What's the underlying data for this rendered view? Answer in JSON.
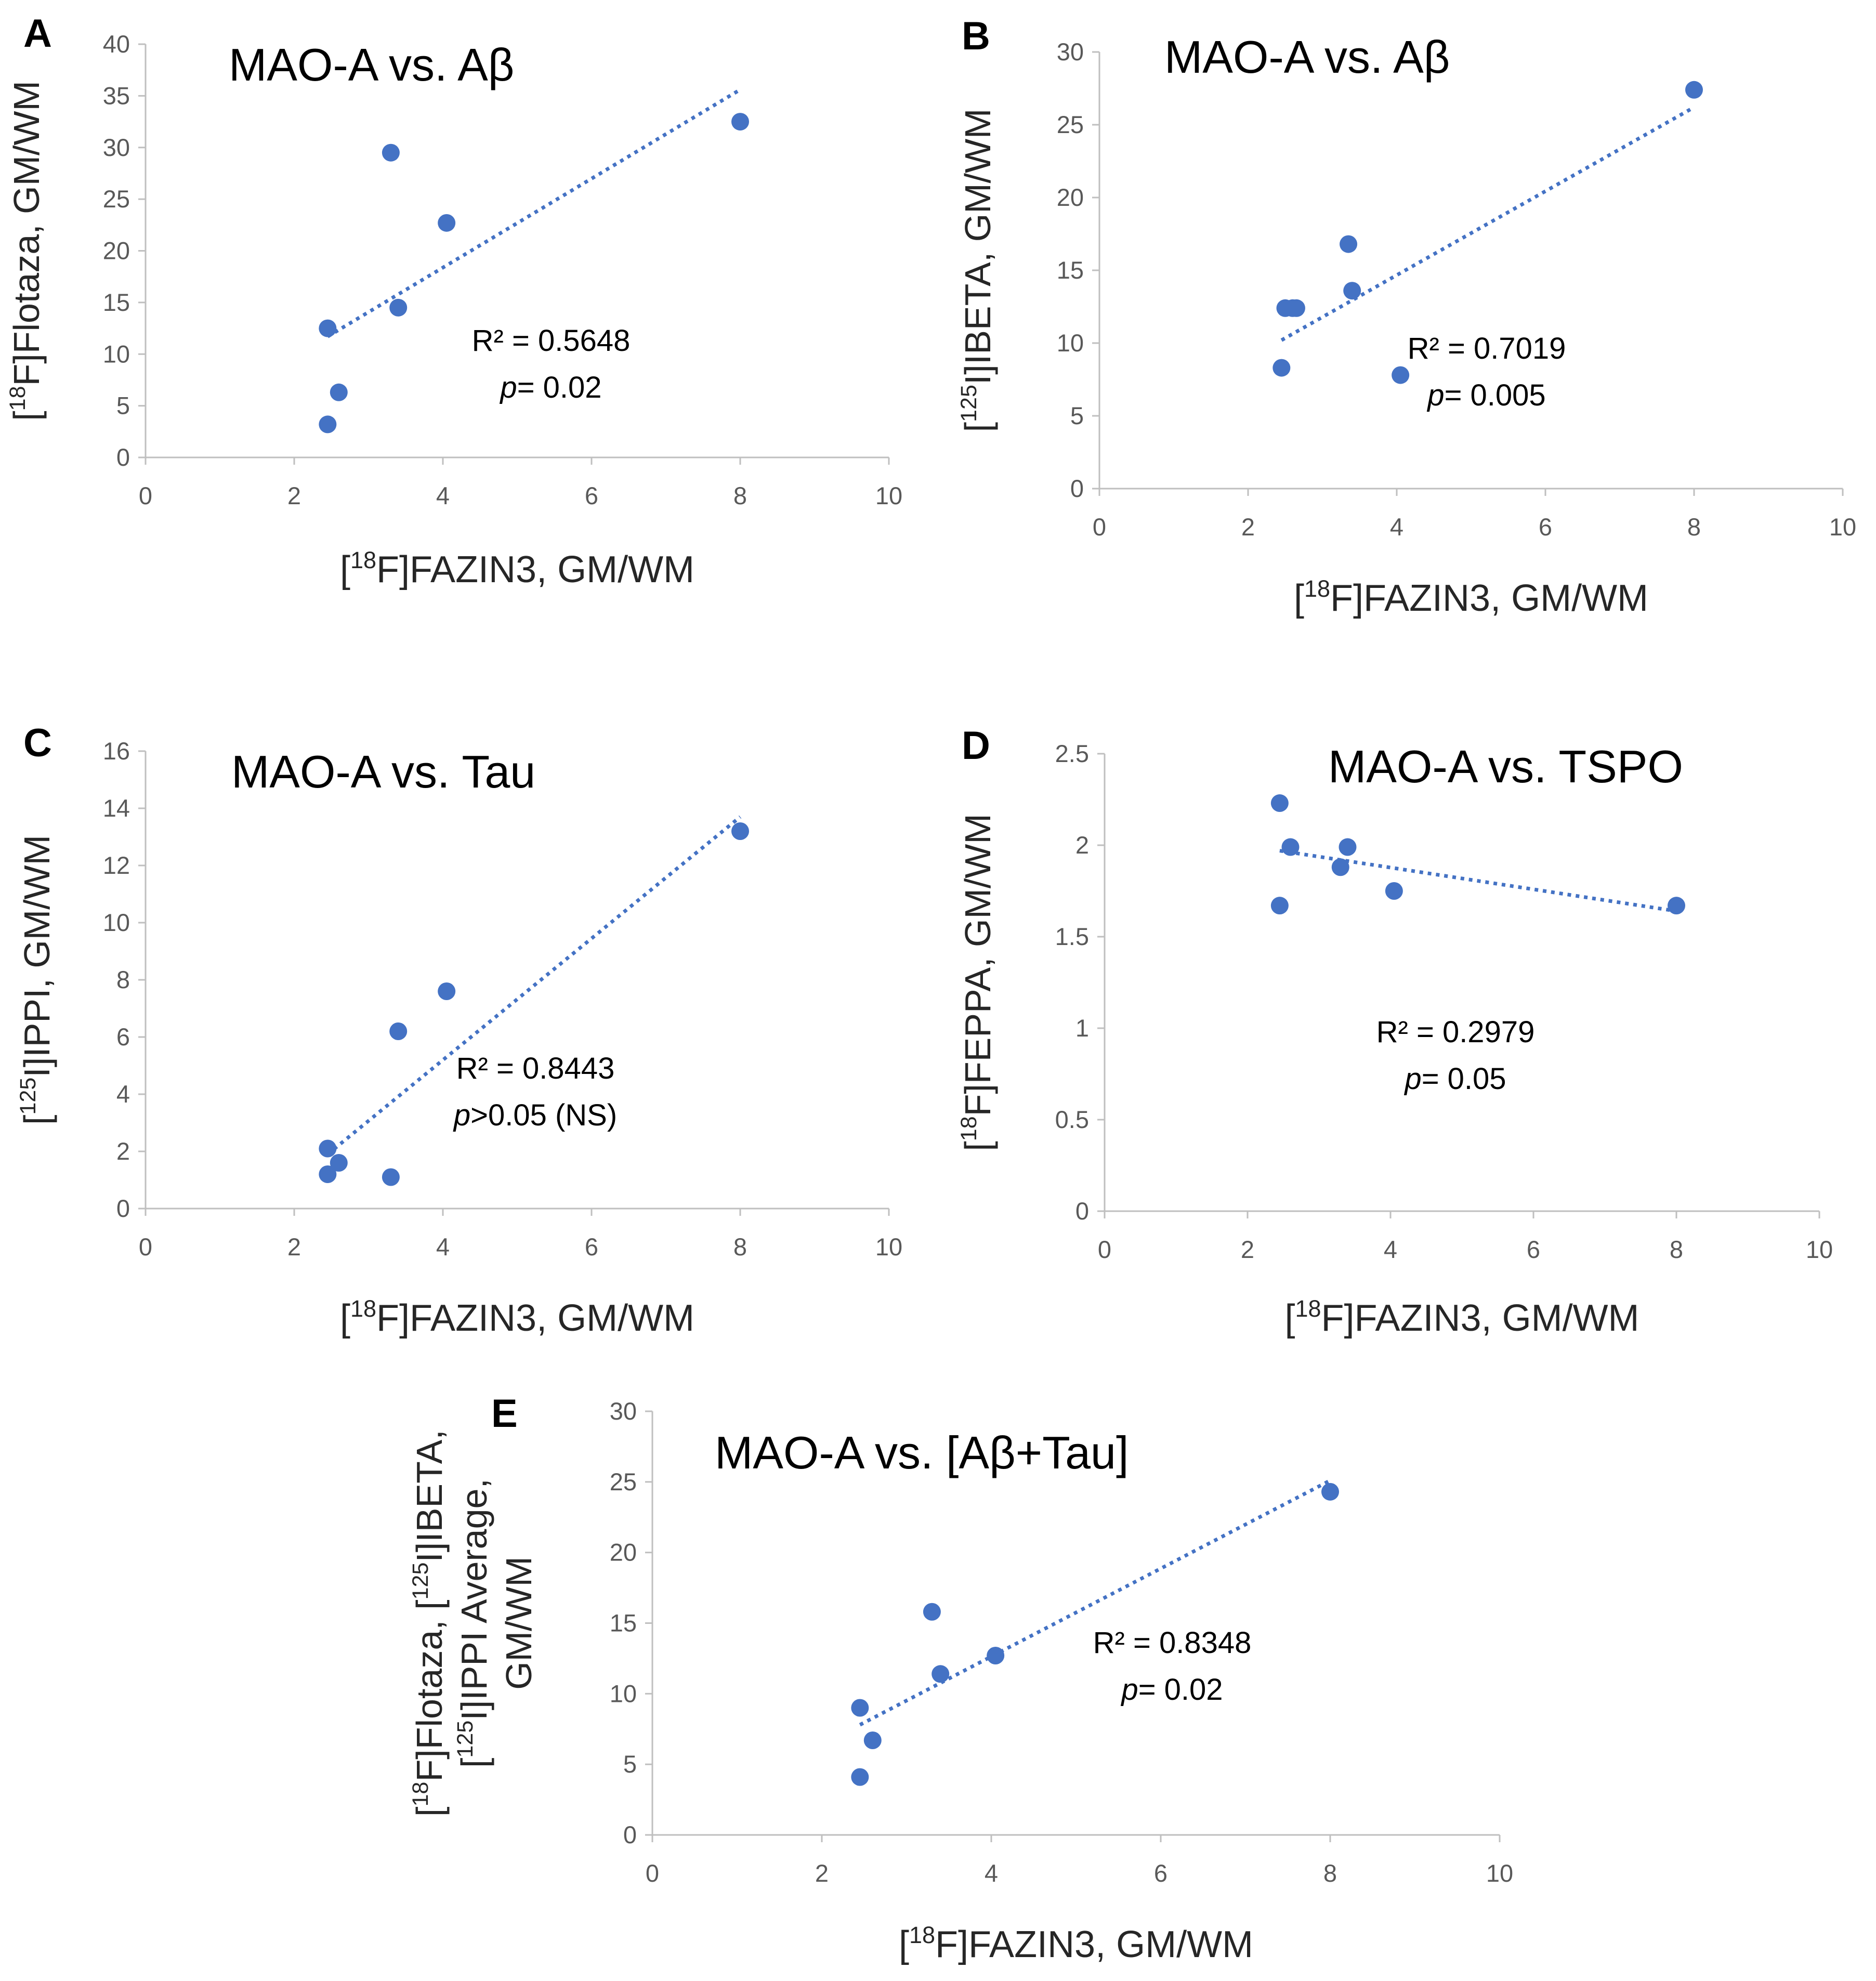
{
  "colors": {
    "marker": "#4472C4",
    "trend": "#4472C4",
    "axis": "#BFBFBF"
  },
  "chart_data": [
    {
      "panel": "A",
      "type": "scatter",
      "title": "MAO-A vs. Aβ",
      "xlabel": "[18F]FAZIN3, GM/WM",
      "ylabel": [
        "[18F]Flotaza, GM/WM"
      ],
      "xlim": [
        0,
        10
      ],
      "ylim": [
        0,
        40
      ],
      "xticks": [
        0,
        2,
        4,
        6,
        8,
        10
      ],
      "yticks": [
        0,
        5,
        10,
        15,
        20,
        25,
        30,
        35,
        40
      ],
      "points": [
        [
          2.45,
          12.5
        ],
        [
          2.6,
          6.3
        ],
        [
          2.45,
          3.2
        ],
        [
          3.3,
          29.5
        ],
        [
          3.4,
          14.5
        ],
        [
          4.05,
          22.7
        ],
        [
          8.0,
          32.5
        ]
      ],
      "trendline": {
        "x": [
          2.45,
          8.0
        ],
        "y": [
          11.7,
          35.6
        ],
        "style": "dotted"
      },
      "annotation": {
        "r2": "R² = 0.5648",
        "p_label": "p",
        "p_value": "= 0.02"
      }
    },
    {
      "panel": "B",
      "type": "scatter",
      "title": "MAO-A vs. Aβ",
      "xlabel": "[18F]FAZIN3, GM/WM",
      "ylabel": [
        "[125I]IBETA, GM/WM"
      ],
      "xlim": [
        0,
        10
      ],
      "ylim": [
        0,
        30
      ],
      "xticks": [
        0,
        2,
        4,
        6,
        8,
        10
      ],
      "yticks": [
        0,
        5,
        10,
        15,
        20,
        25,
        30
      ],
      "points": [
        [
          2.45,
          8.3
        ],
        [
          2.5,
          12.4
        ],
        [
          2.6,
          12.4
        ],
        [
          2.65,
          12.4
        ],
        [
          3.35,
          16.8
        ],
        [
          3.4,
          13.6
        ],
        [
          4.05,
          7.8
        ],
        [
          8.0,
          27.4
        ]
      ],
      "trendline": {
        "x": [
          2.45,
          8.0
        ],
        "y": [
          10.2,
          26.2
        ],
        "style": "dotted"
      },
      "annotation": {
        "r2": "R² = 0.7019",
        "p_label": "p",
        "p_value": "= 0.005"
      }
    },
    {
      "panel": "C",
      "type": "scatter",
      "title": "MAO-A vs. Tau",
      "xlabel": "[18F]FAZIN3, GM/WM",
      "ylabel": [
        "[125I]IPPI, GM/WM"
      ],
      "xlim": [
        0,
        10
      ],
      "ylim": [
        0,
        16
      ],
      "xticks": [
        0,
        2,
        4,
        6,
        8,
        10
      ],
      "yticks": [
        0,
        2,
        4,
        6,
        8,
        10,
        12,
        14,
        16
      ],
      "points": [
        [
          2.45,
          2.1
        ],
        [
          2.45,
          1.2
        ],
        [
          2.6,
          1.6
        ],
        [
          3.3,
          1.1
        ],
        [
          3.4,
          6.2
        ],
        [
          4.05,
          7.6
        ],
        [
          8.0,
          13.2
        ]
      ],
      "trendline": {
        "x": [
          2.45,
          8.0
        ],
        "y": [
          1.9,
          13.7
        ],
        "style": "dotted"
      },
      "annotation": {
        "r2": "R² = 0.8443",
        "p_label": "p",
        "p_value": ">0.05 (NS)"
      }
    },
    {
      "panel": "D",
      "type": "scatter",
      "title": "MAO-A vs. TSPO",
      "xlabel": "[18F]FAZIN3, GM/WM",
      "ylabel": [
        "[18F]FEPPA, GM/WM"
      ],
      "xlim": [
        0,
        10
      ],
      "ylim": [
        0,
        2.5
      ],
      "xticks": [
        0,
        2,
        4,
        6,
        8,
        10
      ],
      "yticks": [
        0,
        0.5,
        1,
        1.5,
        2,
        2.5
      ],
      "yticklabels": [
        "0",
        "0.5",
        "1",
        "1.5",
        "2",
        "2.5"
      ],
      "points": [
        [
          2.45,
          2.23
        ],
        [
          2.45,
          1.67
        ],
        [
          2.6,
          1.99
        ],
        [
          3.3,
          1.88
        ],
        [
          3.4,
          1.99
        ],
        [
          4.05,
          1.75
        ],
        [
          8.0,
          1.67
        ]
      ],
      "trendline": {
        "x": [
          2.45,
          8.0
        ],
        "y": [
          1.97,
          1.64
        ],
        "style": "dotted"
      },
      "annotation": {
        "r2": "R² = 0.2979",
        "p_label": "p",
        "p_value": "= 0.05"
      }
    },
    {
      "panel": "E",
      "type": "scatter",
      "title": "MAO-A vs. [Aβ+Tau]",
      "xlabel": "[18F]FAZIN3, GM/WM",
      "ylabel": [
        "[18F]Flotaza, [125I]IBETA,",
        "[125I]IPPI Average,",
        "GM/WM"
      ],
      "xlim": [
        0,
        10
      ],
      "ylim": [
        0,
        30
      ],
      "xticks": [
        0,
        2,
        4,
        6,
        8,
        10
      ],
      "yticks": [
        0,
        5,
        10,
        15,
        20,
        25,
        30
      ],
      "points": [
        [
          2.45,
          9.0
        ],
        [
          2.6,
          6.7
        ],
        [
          2.45,
          4.1
        ],
        [
          3.3,
          15.8
        ],
        [
          3.4,
          11.4
        ],
        [
          4.05,
          12.7
        ],
        [
          8.0,
          24.3
        ]
      ],
      "trendline": {
        "x": [
          2.45,
          8.0
        ],
        "y": [
          7.8,
          25.1
        ],
        "style": "dotted"
      },
      "annotation": {
        "r2": "R² = 0.8348",
        "p_label": "p",
        "p_value": "= 0.02"
      }
    }
  ]
}
